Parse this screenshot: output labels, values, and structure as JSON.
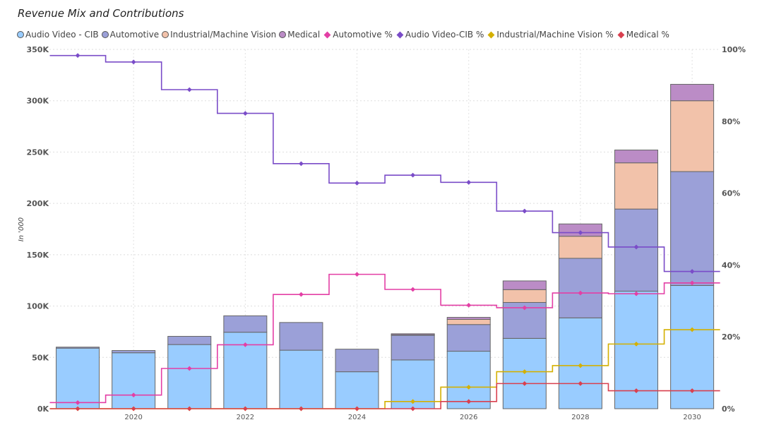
{
  "chart_data": {
    "type": "bar",
    "title": "Revenue Mix and Contributions",
    "ylabel": "In '000",
    "ylim": [
      0,
      350000
    ],
    "y2lim": [
      0,
      100
    ],
    "years": [
      2019,
      2020,
      2021,
      2022,
      2023,
      2024,
      2025,
      2026,
      2027,
      2028,
      2029,
      2030
    ],
    "x_tick_labels": [
      "2020",
      "2022",
      "2024",
      "2026",
      "2028",
      "2030"
    ],
    "y_tick_labels": [
      "0K",
      "50K",
      "100K",
      "150K",
      "200K",
      "250K",
      "300K",
      "350K"
    ],
    "y2_tick_labels": [
      "0%",
      "20%",
      "40%",
      "60%",
      "80%",
      "100%"
    ],
    "stack_series": [
      {
        "name": "Audio Video - CIB",
        "color": "#99CCFF",
        "values": [
          59000,
          54500,
          62500,
          74500,
          57000,
          36000,
          47500,
          56000,
          68500,
          88500,
          114500,
          120000
        ]
      },
      {
        "name": "Automotive",
        "color": "#9BA0D8",
        "values": [
          1000,
          2200,
          8000,
          16000,
          27000,
          22000,
          24000,
          26000,
          35000,
          58000,
          80000,
          111000
        ]
      },
      {
        "name": "Industrial/Machine Vision",
        "color": "#F2C2AA",
        "values": [
          0,
          0,
          0,
          0,
          0,
          0,
          500,
          5000,
          12500,
          21500,
          45000,
          69000
        ]
      },
      {
        "name": "Medical",
        "color": "#BB8CC6",
        "values": [
          0,
          0,
          0,
          0,
          0,
          0,
          1000,
          2000,
          8500,
          12000,
          12500,
          16000
        ]
      }
    ],
    "line_series": [
      {
        "name": "Automotive %",
        "color": "#E33FA5",
        "values": [
          1.7,
          3.8,
          11.2,
          17.8,
          31.8,
          37.4,
          33.2,
          28.8,
          28.1,
          32.2,
          32.0,
          35.0
        ]
      },
      {
        "name": "Audio Video-CIB %",
        "color": "#7A4CC8",
        "values": [
          98.3,
          96.5,
          88.8,
          82.2,
          68.2,
          62.8,
          65.0,
          63.0,
          55.0,
          49.0,
          45.0,
          38.2
        ]
      },
      {
        "name": "Industrial/Machine Vision %",
        "color": "#D4B000",
        "values": [
          0,
          0,
          0,
          0,
          0,
          0,
          2.0,
          6.0,
          10.3,
          12.0,
          18.0,
          22.0
        ]
      },
      {
        "name": "Medical %",
        "color": "#D9404F",
        "values": [
          0,
          0,
          0,
          0,
          0,
          0,
          0,
          2.0,
          7.0,
          7.0,
          5.0,
          5.0
        ]
      }
    ],
    "legend": [
      {
        "label": "Audio Video - CIB",
        "marker": "circle",
        "color": "#99CCFF"
      },
      {
        "label": "Automotive",
        "marker": "circle",
        "color": "#9BA0D8"
      },
      {
        "label": "Industrial/Machine Vision",
        "marker": "circle",
        "color": "#F2C2AA"
      },
      {
        "label": "Medical",
        "marker": "circle",
        "color": "#BB8CC6"
      },
      {
        "label": "Automotive %",
        "marker": "diamond",
        "color": "#E33FA5"
      },
      {
        "label": "Audio Video-CIB %",
        "marker": "diamond",
        "color": "#7A4CC8"
      },
      {
        "label": "Industrial/Machine Vision %",
        "marker": "diamond",
        "color": "#D4B000"
      },
      {
        "label": "Medical %",
        "marker": "diamond",
        "color": "#D9404F"
      }
    ],
    "legend_position": "top-left",
    "grid": true
  }
}
